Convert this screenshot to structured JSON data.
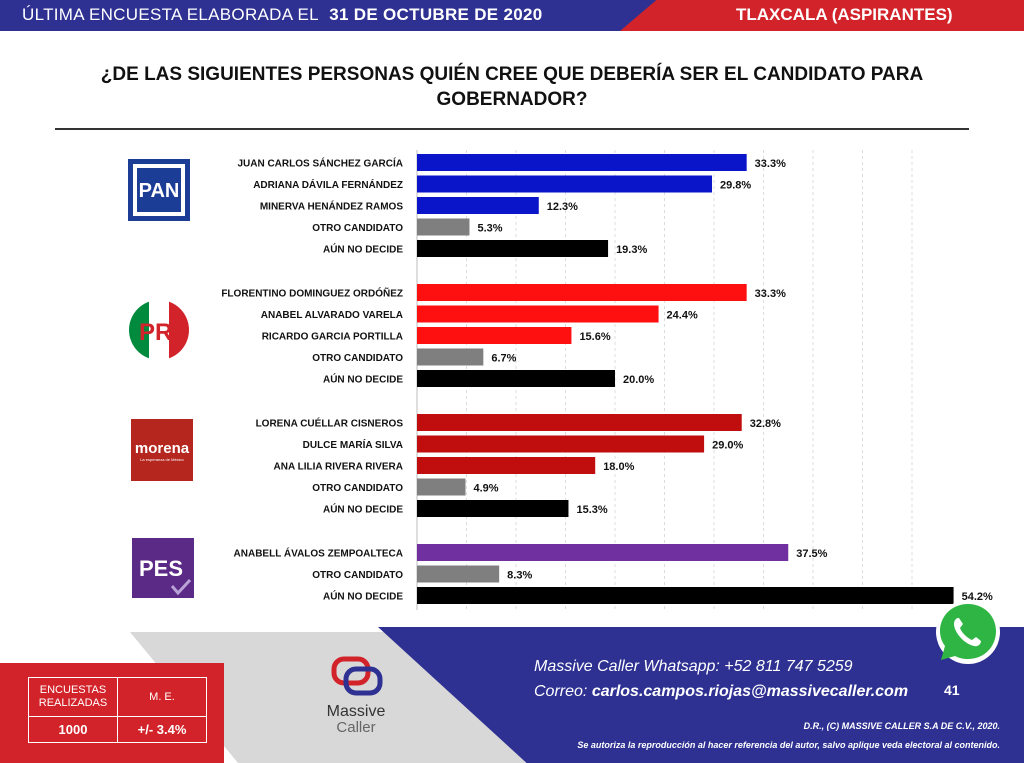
{
  "header": {
    "survey_label": "ÚLTIMA ENCUESTA ELABORADA EL",
    "survey_date": "31 DE OCTUBRE DE 2020",
    "region": "TLAXCALA (ASPIRANTES)"
  },
  "question": "¿DE LAS SIGUIENTES PERSONAS QUIÉN CREE QUE DEBERÍA SER EL CANDIDATO PARA GOBERNADOR?",
  "colors": {
    "blue": "#2e3192",
    "red": "#d2232a",
    "grey_bar": "#7f7f7f",
    "black_bar": "#000000",
    "pan_bar": "#0a14c8",
    "pri_bar": "#ff1010",
    "morena_bar": "#c00d0d",
    "pes_bar": "#7030a0"
  },
  "chart_data": {
    "type": "bar",
    "orientation": "horizontal",
    "title": "¿DE LAS SIGUIENTES PERSONAS QUIÉN CREE QUE DEBERÍA SER EL CANDIDATO PARA GOBERNADOR?",
    "xlim": [
      0,
      100
    ],
    "unit": "%",
    "groups": [
      {
        "party": "PAN",
        "logo_text": "PAN",
        "color": "#0a14c8",
        "bars": [
          {
            "label": "JUAN CARLOS SÁNCHEZ GARCÍA",
            "value": 33.3,
            "value_label": "33.3%",
            "kind": "party"
          },
          {
            "label": "ADRIANA DÁVILA FERNÁNDEZ",
            "value": 29.8,
            "value_label": "29.8%",
            "kind": "party"
          },
          {
            "label": "MINERVA HENÁNDEZ RAMOS",
            "value": 12.3,
            "value_label": "12.3%",
            "kind": "party"
          },
          {
            "label": "OTRO CANDIDATO",
            "value": 5.3,
            "value_label": "5.3%",
            "kind": "other"
          },
          {
            "label": "AÚN NO DECIDE",
            "value": 19.3,
            "value_label": "19.3%",
            "kind": "undecided"
          }
        ]
      },
      {
        "party": "PRI",
        "logo_text": "PRI",
        "color": "#ff1010",
        "bars": [
          {
            "label": "FLORENTINO DOMINGUEZ ORDÓÑEZ",
            "value": 33.3,
            "value_label": "33.3%",
            "kind": "party"
          },
          {
            "label": "ANABEL ALVARADO VARELA",
            "value": 24.4,
            "value_label": "24.4%",
            "kind": "party"
          },
          {
            "label": "RICARDO GARCIA PORTILLA",
            "value": 15.6,
            "value_label": "15.6%",
            "kind": "party"
          },
          {
            "label": "OTRO CANDIDATO",
            "value": 6.7,
            "value_label": "6.7%",
            "kind": "other"
          },
          {
            "label": "AÚN NO DECIDE",
            "value": 20.0,
            "value_label": "20.0%",
            "kind": "undecided"
          }
        ]
      },
      {
        "party": "MORENA",
        "logo_text": "morena",
        "logo_subtext": "La esperanza de México",
        "color": "#c00d0d",
        "bars": [
          {
            "label": "LORENA CUÉLLAR CISNEROS",
            "value": 32.8,
            "value_label": "32.8%",
            "kind": "party"
          },
          {
            "label": "DULCE MARÍA SILVA",
            "value": 29.0,
            "value_label": "29.0%",
            "kind": "party"
          },
          {
            "label": "ANA LILIA RIVERA RIVERA",
            "value": 18.0,
            "value_label": "18.0%",
            "kind": "party"
          },
          {
            "label": "OTRO CANDIDATO",
            "value": 4.9,
            "value_label": "4.9%",
            "kind": "other"
          },
          {
            "label": "AÚN NO DECIDE",
            "value": 15.3,
            "value_label": "15.3%",
            "kind": "undecided"
          }
        ]
      },
      {
        "party": "PES",
        "logo_text": "PES",
        "color": "#7030a0",
        "bars": [
          {
            "label": "ANABELL ÁVALOS ZEMPOALTECA",
            "value": 37.5,
            "value_label": "37.5%",
            "kind": "party"
          },
          {
            "label": "OTRO CANDIDATO",
            "value": 8.3,
            "value_label": "8.3%",
            "kind": "other"
          },
          {
            "label": "AÚN NO DECIDE",
            "value": 54.2,
            "value_label": "54.2%",
            "kind": "undecided"
          }
        ]
      }
    ]
  },
  "footer": {
    "stats": {
      "surveys_label": "ENCUESTAS REALIZADAS",
      "surveys_value": "1000",
      "me_label": "M. E.",
      "me_value": "+/- 3.4%"
    },
    "brand": {
      "line1": "Massive",
      "line2": "Caller"
    },
    "whatsapp_line": "Massive Caller Whatsapp:  +52 811 747 5259",
    "email_prefix": "Correo:",
    "email": "carlos.campos.riojas@massivecaller.com",
    "page_number": "41",
    "copyright": "D.R., (C) MASSIVE CALLER S.A DE C.V., 2020.",
    "disclaimer": "Se autoriza la reproducción al hacer referencia del autor, salvo aplique veda electoral al contenido."
  }
}
